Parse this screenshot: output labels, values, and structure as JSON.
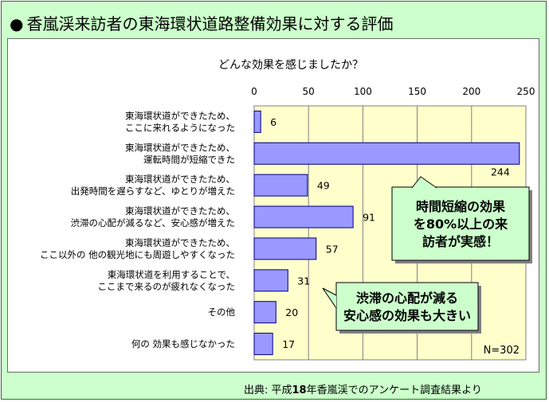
{
  "title": "香嵐渓来訪者の東海環状道路整備効果に対する評価",
  "title_bullet": "●",
  "source_prefix": "出典: 平成",
  "source_year": "18",
  "source_suffix": "年香嵐渓でのアンケート調査結果より",
  "colors": {
    "frame_bg": "#ccffcc",
    "plot_bg": "#ffffcc",
    "bar": "#9999ff",
    "bar_border": "#000080",
    "callout_bg": "#ccffcc"
  },
  "chart_data": {
    "type": "bar",
    "orientation": "horizontal",
    "title": "どんな効果を感じましたか？",
    "xlabel": "",
    "ylabel": "",
    "xlim": [
      0,
      250
    ],
    "xticks": [
      "0",
      "50",
      "100",
      "150",
      "200",
      "250"
    ],
    "grid": true,
    "categories": [
      [
        "東海環状道ができたため、",
        "ここに来れるようになった"
      ],
      [
        "東海環状道ができたため、",
        "運転時間が短縮できた"
      ],
      [
        "東海環状道ができたため、",
        "出発時間を遅らすなど、ゆとりが増えた"
      ],
      [
        "東海環状道ができたため、",
        "渋滞の心配が減るなど、安心感が増えた"
      ],
      [
        "東海環状道ができたため、",
        "ここ以外の 他の観光地にも周遊しやすくなった"
      ],
      [
        "東海環状道を利用することで、",
        "ここまで来るのが疲れなくなった"
      ],
      [
        "その他"
      ],
      [
        "何の 効果も感じなかった"
      ]
    ],
    "values": [
      6,
      244,
      49,
      91,
      57,
      31,
      20,
      17
    ],
    "value_labels": [
      "6",
      "244",
      "49",
      "91",
      "57",
      "31",
      "20",
      "17"
    ],
    "n_label": "N=302",
    "annotations": [
      {
        "lines": [
          "時間短縮の効果",
          "を80%以上の来",
          "訪者が実感！"
        ]
      },
      {
        "lines": [
          "渋滞の心配が減る",
          "安心感の効果も大きい"
        ]
      }
    ]
  }
}
